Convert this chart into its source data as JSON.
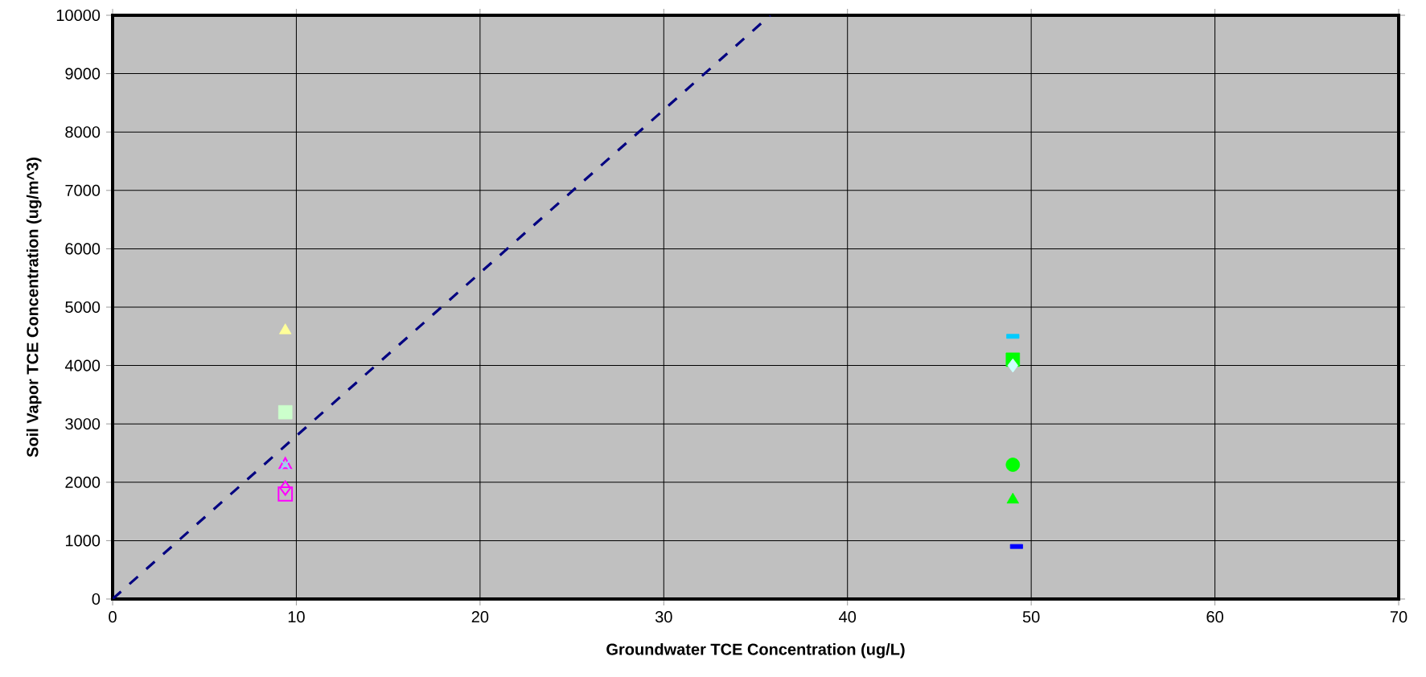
{
  "chart_data": {
    "type": "scatter",
    "xlabel": "Groundwater TCE Concentration (ug/L)",
    "ylabel": "Soil Vapor TCE Concentration (ug/m^3)",
    "xlim": [
      0,
      70
    ],
    "ylim": [
      0,
      10000
    ],
    "xticks": [
      0,
      10,
      20,
      30,
      40,
      50,
      60,
      70
    ],
    "yticks": [
      0,
      1000,
      2000,
      3000,
      4000,
      5000,
      6000,
      7000,
      8000,
      9000,
      10000
    ],
    "grid": true,
    "series": [
      {
        "color": "#ffff99",
        "marker": "triangle",
        "x": [
          9.4
        ],
        "values": [
          4600
        ]
      },
      {
        "color": "#ccffcc",
        "marker": "square",
        "x": [
          9.4
        ],
        "values": [
          3200
        ]
      },
      {
        "color": "#ff00ff",
        "marker": "triangle_open",
        "x": [
          9.4
        ],
        "values": [
          2300
        ]
      },
      {
        "color": "#99ccff",
        "marker": "cross",
        "x": [
          9.4
        ],
        "values": [
          2300
        ]
      },
      {
        "color": "#ff00ff",
        "marker": "diamond_open",
        "x": [
          9.4
        ],
        "values": [
          1900
        ]
      },
      {
        "color": "#ff00ff",
        "marker": "square_open",
        "x": [
          9.4
        ],
        "values": [
          1800
        ]
      },
      {
        "color": "#00ccff",
        "x": [
          49
        ],
        "values": [
          4500
        ]
      },
      {
        "color": "#00ff00",
        "marker": "square",
        "x": [
          49
        ],
        "values": [
          4100
        ]
      },
      {
        "color": "#ccffff",
        "marker": "diamond",
        "x": [
          49
        ],
        "values": [
          4000
        ]
      },
      {
        "color": "#00ff00",
        "marker": "circle",
        "x": [
          49
        ],
        "values": [
          2300
        ]
      },
      {
        "color": "#00ff00",
        "marker": "triangle",
        "x": [
          49
        ],
        "values": [
          1700
        ]
      },
      {
        "color": "#0000ff",
        "x": [
          49.2
        ],
        "values": [
          900
        ]
      },
      {
        "type": "line",
        "color": "#000080",
        "marker": "none",
        "line_style": "dashed",
        "x": [
          0,
          35.8
        ],
        "values": [
          0,
          10000
        ]
      }
    ]
  }
}
